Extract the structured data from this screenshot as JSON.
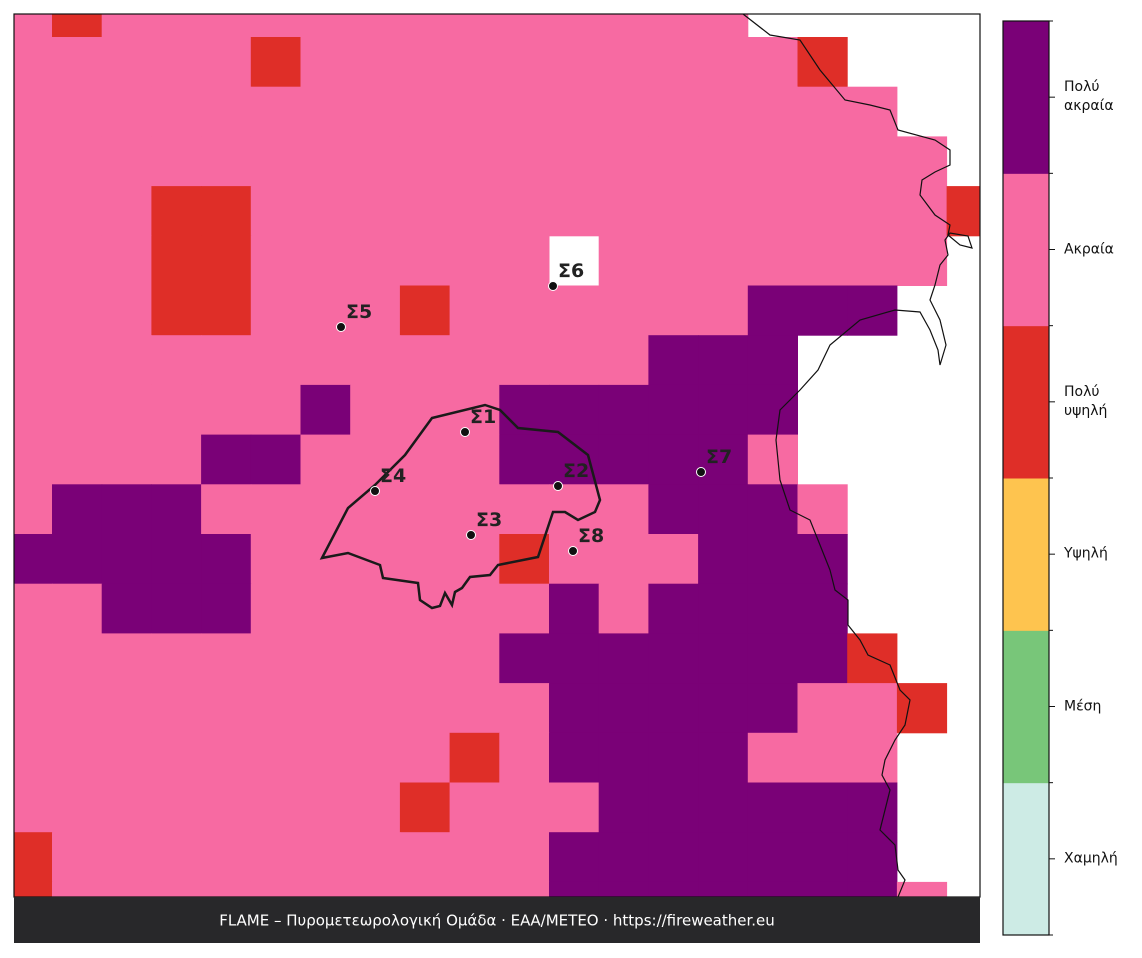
{
  "map": {
    "grid": [
      [
        4,
        3,
        4,
        4,
        4,
        4,
        4,
        4,
        4,
        4,
        4,
        4,
        4,
        4,
        4,
        null,
        null,
        null,
        null,
        null
      ],
      [
        4,
        4,
        4,
        4,
        4,
        3,
        4,
        4,
        4,
        4,
        4,
        4,
        4,
        4,
        4,
        4,
        3,
        null,
        null,
        null
      ],
      [
        4,
        4,
        4,
        4,
        4,
        4,
        4,
        4,
        4,
        4,
        4,
        4,
        4,
        4,
        4,
        4,
        4,
        4,
        null,
        null
      ],
      [
        4,
        4,
        4,
        4,
        4,
        4,
        4,
        4,
        4,
        4,
        4,
        4,
        4,
        4,
        4,
        4,
        4,
        4,
        4,
        null
      ],
      [
        4,
        4,
        4,
        3,
        3,
        4,
        4,
        4,
        4,
        4,
        4,
        4,
        4,
        4,
        4,
        4,
        4,
        4,
        4,
        3
      ],
      [
        4,
        4,
        4,
        3,
        3,
        4,
        4,
        4,
        4,
        4,
        4,
        null,
        4,
        4,
        4,
        4,
        4,
        4,
        4,
        null
      ],
      [
        4,
        4,
        4,
        3,
        3,
        4,
        4,
        4,
        3,
        4,
        4,
        4,
        4,
        4,
        4,
        5,
        5,
        5,
        null,
        null
      ],
      [
        4,
        4,
        4,
        4,
        4,
        4,
        4,
        4,
        4,
        4,
        4,
        4,
        4,
        5,
        5,
        5,
        null,
        null,
        null,
        null
      ],
      [
        4,
        4,
        4,
        4,
        4,
        4,
        5,
        4,
        4,
        4,
        5,
        5,
        5,
        5,
        5,
        5,
        null,
        null,
        null,
        null
      ],
      [
        4,
        4,
        4,
        4,
        5,
        5,
        4,
        4,
        4,
        4,
        5,
        5,
        5,
        5,
        5,
        4,
        null,
        null,
        null,
        null
      ],
      [
        4,
        5,
        5,
        5,
        4,
        4,
        4,
        4,
        4,
        4,
        4,
        4,
        4,
        5,
        5,
        5,
        4,
        null,
        null,
        null
      ],
      [
        5,
        5,
        5,
        5,
        5,
        4,
        4,
        4,
        4,
        4,
        3,
        4,
        4,
        4,
        5,
        5,
        5,
        null,
        null,
        null
      ],
      [
        4,
        4,
        5,
        5,
        5,
        4,
        4,
        4,
        4,
        4,
        4,
        5,
        4,
        5,
        5,
        5,
        5,
        null,
        null,
        null
      ],
      [
        4,
        4,
        4,
        4,
        4,
        4,
        4,
        4,
        4,
        4,
        5,
        5,
        5,
        5,
        5,
        5,
        5,
        3,
        null,
        null
      ],
      [
        4,
        4,
        4,
        4,
        4,
        4,
        4,
        4,
        4,
        4,
        4,
        5,
        5,
        5,
        5,
        5,
        4,
        4,
        3,
        null
      ],
      [
        4,
        4,
        4,
        4,
        4,
        4,
        4,
        4,
        4,
        3,
        4,
        5,
        5,
        5,
        5,
        4,
        4,
        4,
        null,
        null
      ],
      [
        4,
        4,
        4,
        4,
        4,
        4,
        4,
        4,
        3,
        4,
        4,
        4,
        5,
        5,
        5,
        5,
        5,
        5,
        null,
        null
      ],
      [
        3,
        4,
        4,
        4,
        4,
        4,
        4,
        4,
        4,
        4,
        4,
        5,
        5,
        5,
        5,
        5,
        5,
        5,
        null,
        null
      ],
      [
        3,
        4,
        4,
        4,
        4,
        4,
        4,
        4,
        4,
        4,
        4,
        5,
        5,
        5,
        5,
        5,
        5,
        5,
        4,
        null
      ]
    ],
    "stations": [
      "Σ1",
      "Σ2",
      "Σ3",
      "Σ4",
      "Σ5",
      "Σ6",
      "Σ7",
      "Σ8"
    ]
  },
  "legend": {
    "classes": [
      {
        "label": "Χαμηλή",
        "color": "#cdebe5"
      },
      {
        "label": "Μέση",
        "color": "#78c679"
      },
      {
        "label": "Υψηλή",
        "color": "#fec44f"
      },
      {
        "label": "Πολύ\nυψηλή",
        "color": "#df2e28"
      },
      {
        "label": "Ακραία",
        "color": "#f76aa2"
      },
      {
        "label": "Πολύ\nακραία",
        "color": "#7a0177"
      }
    ]
  },
  "footer": "FLAME – Πυρομετεωρολογική Ομάδα · ΕΑΑ/METEO · https://fireweather.eu"
}
